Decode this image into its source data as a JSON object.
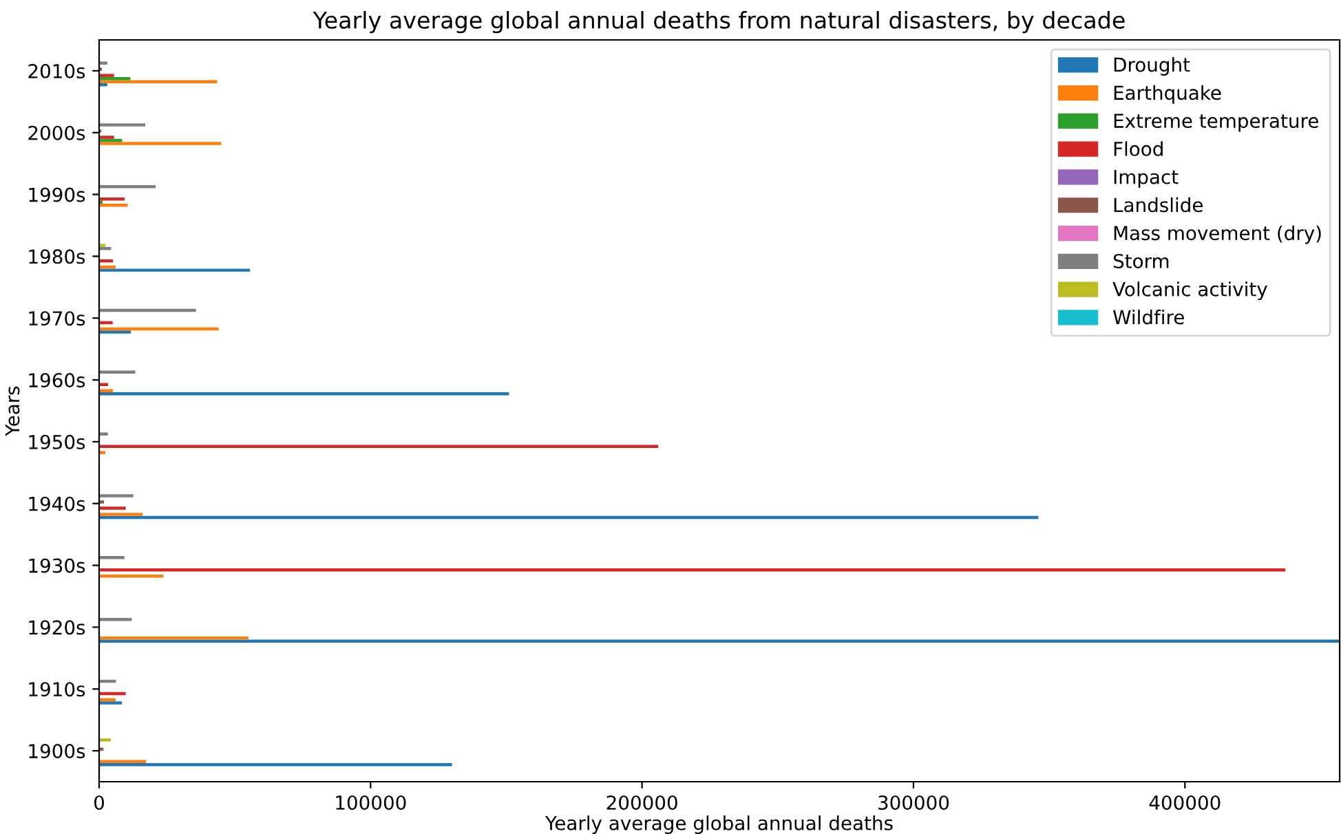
{
  "chart_data": {
    "type": "bar",
    "orientation": "horizontal",
    "title": "Yearly average global annual deaths from natural disasters, by decade",
    "xlabel": "Yearly average global annual deaths",
    "ylabel": "Years",
    "categories": [
      "2010s",
      "2000s",
      "1990s",
      "1980s",
      "1970s",
      "1960s",
      "1950s",
      "1940s",
      "1930s",
      "1920s",
      "1910s",
      "1900s"
    ],
    "series": [
      {
        "name": "Drought",
        "color": "#1f77b4",
        "values": [
          3000,
          0,
          0,
          55600,
          11700,
          151000,
          0,
          346000,
          0,
          457000,
          8400,
          130000
        ]
      },
      {
        "name": "Earthquake",
        "color": "#ff7f0e",
        "values": [
          43500,
          45000,
          10500,
          6100,
          44000,
          5100,
          2300,
          16000,
          23700,
          55000,
          6100,
          17300
        ]
      },
      {
        "name": "Extreme temperature",
        "color": "#2ca02c",
        "values": [
          11500,
          8500,
          1300,
          0,
          0,
          0,
          0,
          0,
          0,
          0,
          0,
          0
        ]
      },
      {
        "name": "Flood",
        "color": "#d62728",
        "values": [
          5500,
          5500,
          9400,
          5100,
          5000,
          3300,
          206000,
          9800,
          437000,
          0,
          9800,
          0
        ]
      },
      {
        "name": "Impact",
        "color": "#9467bd",
        "values": [
          0,
          0,
          0,
          0,
          0,
          0,
          0,
          0,
          0,
          0,
          0,
          0
        ]
      },
      {
        "name": "Landslide",
        "color": "#8c564b",
        "values": [
          1000,
          800,
          0,
          0,
          0,
          0,
          0,
          1800,
          0,
          0,
          0,
          1600
        ]
      },
      {
        "name": "Mass movement (dry)",
        "color": "#e377c2",
        "values": [
          0,
          0,
          0,
          0,
          0,
          0,
          0,
          0,
          0,
          0,
          0,
          0
        ]
      },
      {
        "name": "Storm",
        "color": "#7f7f7f",
        "values": [
          3000,
          17000,
          20800,
          4400,
          35700,
          13300,
          3200,
          12600,
          9300,
          12000,
          6200,
          0
        ]
      },
      {
        "name": "Volcanic activity",
        "color": "#bcbd22",
        "values": [
          0,
          0,
          0,
          2300,
          0,
          0,
          0,
          0,
          0,
          0,
          0,
          4300
        ]
      },
      {
        "name": "Wildfire",
        "color": "#17becf",
        "values": [
          0,
          0,
          0,
          0,
          0,
          0,
          0,
          0,
          0,
          0,
          0,
          0
        ]
      }
    ],
    "xlim": [
      0,
      457000
    ],
    "xticks": [
      0,
      100000,
      200000,
      300000,
      400000
    ],
    "grid": false,
    "legend": "top right"
  }
}
